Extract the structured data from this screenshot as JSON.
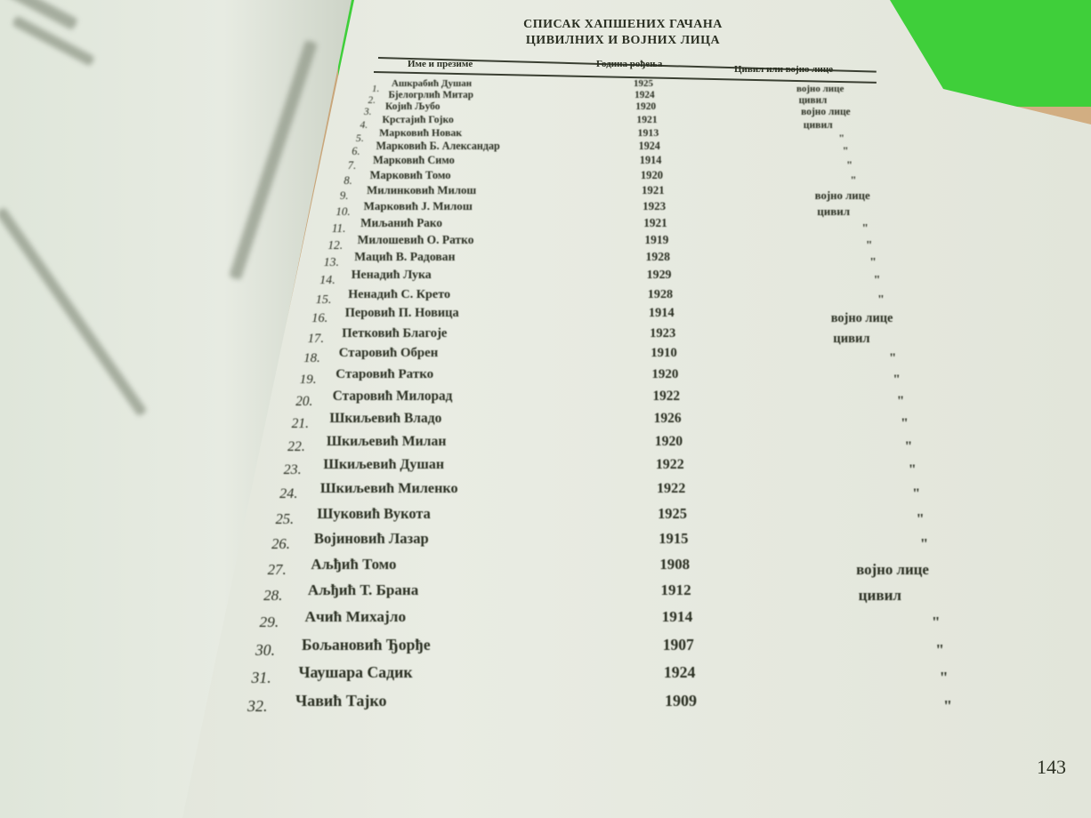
{
  "document": {
    "title_line1": "СПИСАК ХАПШЕНИХ ГАЧАНА",
    "title_line2": "ЦИВИЛНИХ И ВОЈНИХ ЛИЦА",
    "columns": [
      "Име и презиме",
      "Година рођења",
      "Цивил или војно лице"
    ],
    "rows": [
      {
        "num": "1.",
        "name": "Ашкрабић Душан",
        "year": "1925",
        "status": "војно лице"
      },
      {
        "num": "2.",
        "name": "Бјелогрлић Митар",
        "year": "1924",
        "status": "цивил"
      },
      {
        "num": "3.",
        "name": "Којић Љубо",
        "year": "1920",
        "status": "војно лице"
      },
      {
        "num": "4.",
        "name": "Крстајић Гојко",
        "year": "1921",
        "status": "цивил"
      },
      {
        "num": "5.",
        "name": "Марковић Новак",
        "year": "1913",
        "status": "\""
      },
      {
        "num": "6.",
        "name": "Марковић Б. Александар",
        "year": "1924",
        "status": "\""
      },
      {
        "num": "7.",
        "name": "Марковић Симо",
        "year": "1914",
        "status": "\""
      },
      {
        "num": "8.",
        "name": "Марковић Томо",
        "year": "1920",
        "status": "\""
      },
      {
        "num": "9.",
        "name": "Милинковић Милош",
        "year": "1921",
        "status": "војно лице"
      },
      {
        "num": "10.",
        "name": "Марковић Ј. Милош",
        "year": "1923",
        "status": "цивил"
      },
      {
        "num": "11.",
        "name": "Миљанић Рако",
        "year": "1921",
        "status": "\""
      },
      {
        "num": "12.",
        "name": "Милошевић О. Ратко",
        "year": "1919",
        "status": "\""
      },
      {
        "num": "13.",
        "name": "Мацић В. Радован",
        "year": "1928",
        "status": "\""
      },
      {
        "num": "14.",
        "name": "Ненадић Лука",
        "year": "1929",
        "status": "\""
      },
      {
        "num": "15.",
        "name": "Ненадић С. Крето",
        "year": "1928",
        "status": "\""
      },
      {
        "num": "16.",
        "name": "Перовић П. Новица",
        "year": "1914",
        "status": "војно лице"
      },
      {
        "num": "17.",
        "name": "Петковић Благоје",
        "year": "1923",
        "status": "цивил"
      },
      {
        "num": "18.",
        "name": "Старовић Обрен",
        "year": "1910",
        "status": "\""
      },
      {
        "num": "19.",
        "name": "Старовић Ратко",
        "year": "1920",
        "status": "\""
      },
      {
        "num": "20.",
        "name": "Старовић Милорад",
        "year": "1922",
        "status": "\""
      },
      {
        "num": "21.",
        "name": "Шкиљевић Владо",
        "year": "1926",
        "status": "\""
      },
      {
        "num": "22.",
        "name": "Шкиљевић Милан",
        "year": "1920",
        "status": "\""
      },
      {
        "num": "23.",
        "name": "Шкиљевић Душан",
        "year": "1922",
        "status": "\""
      },
      {
        "num": "24.",
        "name": "Шкиљевић Миленко",
        "year": "1922",
        "status": "\""
      },
      {
        "num": "25.",
        "name": "Шуковић Вукота",
        "year": "1925",
        "status": "\""
      },
      {
        "num": "26.",
        "name": "Војиновић Лазар",
        "year": "1915",
        "status": "\""
      },
      {
        "num": "27.",
        "name": "Аљђић Томо",
        "year": "1908",
        "status": "војно лице"
      },
      {
        "num": "28.",
        "name": "Аљђић Т. Брана",
        "year": "1912",
        "status": "цивил"
      },
      {
        "num": "29.",
        "name": "Ачић Михајло",
        "year": "1914",
        "status": "\""
      },
      {
        "num": "30.",
        "name": "Бољановић Ђорђе",
        "year": "1907",
        "status": "\""
      },
      {
        "num": "31.",
        "name": "Чаушара Садик",
        "year": "1924",
        "status": "\""
      },
      {
        "num": "32.",
        "name": "Чавић Тајко",
        "year": "1909",
        "status": "\""
      }
    ],
    "page_number": "143"
  }
}
